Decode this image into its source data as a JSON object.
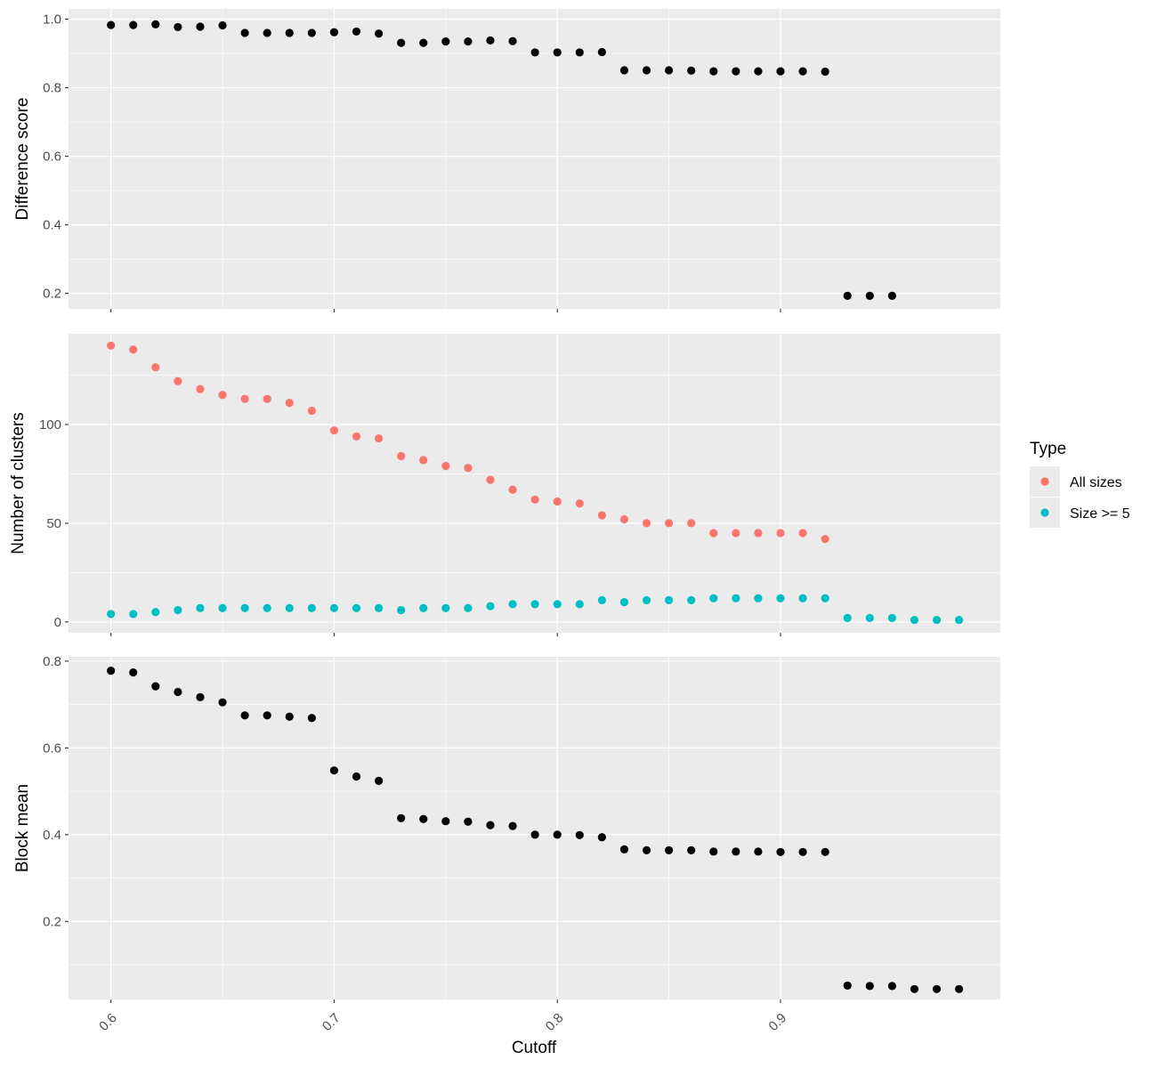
{
  "chart_data": [
    {
      "type": "scatter",
      "ylabel": "Difference score",
      "yticks": [
        0.2,
        0.4,
        0.6,
        0.8,
        1.0
      ],
      "ytick_labels": [
        "0.2",
        "0.4",
        "0.6",
        "0.8",
        "1.0"
      ],
      "ylim": [
        0.155,
        1.03
      ],
      "xlim": [
        0.581,
        0.9985
      ],
      "grid": true,
      "series": [
        {
          "color": "#000000",
          "x": [
            0.6,
            0.61,
            0.62,
            0.63,
            0.64,
            0.65,
            0.66,
            0.67,
            0.68,
            0.69,
            0.7,
            0.71,
            0.72,
            0.73,
            0.74,
            0.75,
            0.76,
            0.77,
            0.78,
            0.79,
            0.8,
            0.81,
            0.82,
            0.83,
            0.84,
            0.85,
            0.86,
            0.87,
            0.88,
            0.89,
            0.9,
            0.91,
            0.92,
            0.93,
            0.94,
            0.95
          ],
          "y": [
            0.983,
            0.983,
            0.985,
            0.977,
            0.978,
            0.982,
            0.96,
            0.96,
            0.96,
            0.96,
            0.962,
            0.964,
            0.958,
            0.931,
            0.931,
            0.935,
            0.935,
            0.938,
            0.936,
            0.903,
            0.903,
            0.903,
            0.904,
            0.851,
            0.851,
            0.851,
            0.85,
            0.848,
            0.848,
            0.848,
            0.848,
            0.848,
            0.847,
            0.193,
            0.193,
            0.193
          ]
        }
      ]
    },
    {
      "type": "scatter",
      "ylabel": "Number of clusters",
      "yticks": [
        0,
        50,
        100
      ],
      "ytick_labels": [
        "0",
        "50",
        "100"
      ],
      "ylim": [
        -5.5,
        146
      ],
      "xlim": [
        0.581,
        0.9985
      ],
      "grid": true,
      "legend": {
        "title": "Type",
        "position": "right",
        "items": [
          {
            "label": "All sizes",
            "color": "#F8766D"
          },
          {
            "label": "Size >= 5",
            "color": "#00BFC4"
          }
        ]
      },
      "series": [
        {
          "name": "All sizes",
          "color": "#F8766D",
          "x": [
            0.6,
            0.61,
            0.62,
            0.63,
            0.64,
            0.65,
            0.66,
            0.67,
            0.68,
            0.69,
            0.7,
            0.71,
            0.72,
            0.73,
            0.74,
            0.75,
            0.76,
            0.77,
            0.78,
            0.79,
            0.8,
            0.81,
            0.82,
            0.83,
            0.84,
            0.85,
            0.86,
            0.87,
            0.88,
            0.89,
            0.9,
            0.91,
            0.92
          ],
          "y": [
            140,
            138,
            129,
            122,
            118,
            115,
            113,
            113,
            111,
            107,
            97,
            94,
            93,
            84,
            82,
            79,
            78,
            72,
            67,
            62,
            61,
            60,
            54,
            52,
            50,
            50,
            50,
            45,
            45,
            45,
            45,
            45,
            42
          ]
        },
        {
          "name": "Size >= 5",
          "color": "#00BFC4",
          "x": [
            0.6,
            0.61,
            0.62,
            0.63,
            0.64,
            0.65,
            0.66,
            0.67,
            0.68,
            0.69,
            0.7,
            0.71,
            0.72,
            0.73,
            0.74,
            0.75,
            0.76,
            0.77,
            0.78,
            0.79,
            0.8,
            0.81,
            0.82,
            0.83,
            0.84,
            0.85,
            0.86,
            0.87,
            0.88,
            0.89,
            0.9,
            0.91,
            0.92,
            0.93,
            0.94,
            0.95,
            0.96,
            0.97,
            0.98
          ],
          "y": [
            4,
            4,
            5,
            6,
            7,
            7,
            7,
            7,
            7,
            7,
            7,
            7,
            7,
            6,
            7,
            7,
            7,
            8,
            9,
            9,
            9,
            9,
            11,
            10,
            11,
            11,
            11,
            12,
            12,
            12,
            12,
            12,
            12,
            2,
            2,
            2,
            1,
            1,
            1
          ]
        }
      ]
    },
    {
      "type": "scatter",
      "ylabel": "Block mean",
      "xlabel": "Cutoff",
      "yticks": [
        0.2,
        0.4,
        0.6,
        0.8
      ],
      "ytick_labels": [
        "0.2",
        "0.4",
        "0.6",
        "0.8"
      ],
      "xticks": [
        0.6,
        0.7,
        0.8,
        0.9
      ],
      "xtick_labels": [
        "0.6",
        "0.7",
        "0.8",
        "0.9"
      ],
      "ylim": [
        0.02,
        0.81
      ],
      "xlim": [
        0.581,
        0.9985
      ],
      "grid": true,
      "series": [
        {
          "color": "#000000",
          "x": [
            0.6,
            0.61,
            0.62,
            0.63,
            0.64,
            0.65,
            0.66,
            0.67,
            0.68,
            0.69,
            0.7,
            0.71,
            0.72,
            0.73,
            0.74,
            0.75,
            0.76,
            0.77,
            0.78,
            0.79,
            0.8,
            0.81,
            0.82,
            0.83,
            0.84,
            0.85,
            0.86,
            0.87,
            0.88,
            0.89,
            0.9,
            0.91,
            0.92,
            0.93,
            0.94,
            0.95,
            0.96,
            0.97,
            0.98
          ],
          "y": [
            0.778,
            0.774,
            0.742,
            0.729,
            0.717,
            0.705,
            0.675,
            0.675,
            0.672,
            0.669,
            0.548,
            0.534,
            0.524,
            0.438,
            0.436,
            0.431,
            0.43,
            0.422,
            0.42,
            0.4,
            0.4,
            0.399,
            0.394,
            0.366,
            0.364,
            0.364,
            0.364,
            0.361,
            0.361,
            0.361,
            0.36,
            0.36,
            0.36,
            0.052,
            0.051,
            0.051,
            0.044,
            0.044,
            0.044
          ]
        }
      ]
    }
  ]
}
